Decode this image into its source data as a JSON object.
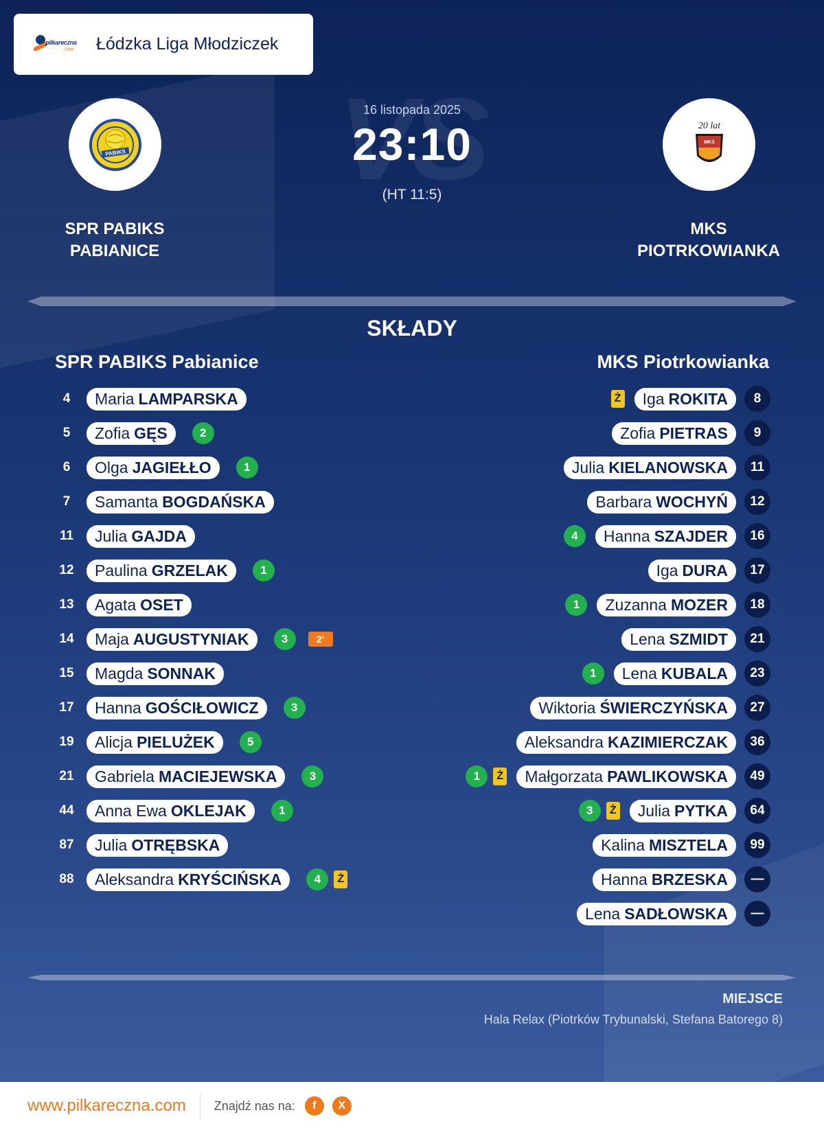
{
  "league": {
    "title": "Łódzka Liga Młodziczek",
    "logo_brand": "pilkareczna",
    "logo_suffix": ".com"
  },
  "match": {
    "date": "16 listopada 2025",
    "score": "23:10",
    "halftime": "(HT 11:5)",
    "vs_text": "VS",
    "home": {
      "name_line1": "SPR PABIKS",
      "name_line2": "PABIANICE",
      "full_name": "SPR PABIKS Pabianice",
      "logo_text": "PABIKS"
    },
    "away": {
      "name_line1": "MKS",
      "name_line2": "PIOTRKOWIANKA",
      "full_name": "MKS Piotrkowianka",
      "logo_text": "20 lat",
      "logo_sub": "MKS"
    }
  },
  "section_title": "SKŁADY",
  "home_players": [
    {
      "number": "4",
      "first": "Maria",
      "last": "LAMPARSKA",
      "goals": "",
      "yellow": "",
      "suspension": ""
    },
    {
      "number": "5",
      "first": "Zofia",
      "last": "GĘS",
      "goals": "2",
      "yellow": "",
      "suspension": ""
    },
    {
      "number": "6",
      "first": "Olga",
      "last": "JAGIEŁŁO",
      "goals": "1",
      "yellow": "",
      "suspension": ""
    },
    {
      "number": "7",
      "first": "Samanta",
      "last": "BOGDAŃSKA",
      "goals": "",
      "yellow": "",
      "suspension": ""
    },
    {
      "number": "11",
      "first": "Julia",
      "last": "GAJDA",
      "goals": "",
      "yellow": "",
      "suspension": ""
    },
    {
      "number": "12",
      "first": "Paulina",
      "last": "GRZELAK",
      "goals": "1",
      "yellow": "",
      "suspension": ""
    },
    {
      "number": "13",
      "first": "Agata",
      "last": "OSET",
      "goals": "",
      "yellow": "",
      "suspension": ""
    },
    {
      "number": "14",
      "first": "Maja",
      "last": "AUGUSTYNIAK",
      "goals": "3",
      "yellow": "",
      "suspension": "2'"
    },
    {
      "number": "15",
      "first": "Magda",
      "last": "SONNAK",
      "goals": "",
      "yellow": "",
      "suspension": ""
    },
    {
      "number": "17",
      "first": "Hanna",
      "last": "GOŚCIŁOWICZ",
      "goals": "3",
      "yellow": "",
      "suspension": ""
    },
    {
      "number": "19",
      "first": "Alicja",
      "last": "PIELUŻEK",
      "goals": "5",
      "yellow": "",
      "suspension": ""
    },
    {
      "number": "21",
      "first": "Gabriela",
      "last": "MACIEJEWSKA",
      "goals": "3",
      "yellow": "",
      "suspension": ""
    },
    {
      "number": "44",
      "first": "Anna Ewa",
      "last": "OKLEJAK",
      "goals": "1",
      "yellow": "",
      "suspension": ""
    },
    {
      "number": "87",
      "first": "Julia",
      "last": "OTRĘBSKA",
      "goals": "",
      "yellow": "",
      "suspension": ""
    },
    {
      "number": "88",
      "first": "Aleksandra",
      "last": "KRYŚCIŃSKA",
      "goals": "4",
      "yellow": "Ż",
      "suspension": ""
    }
  ],
  "away_players": [
    {
      "number": "8",
      "first": "Iga",
      "last": "ROKITA",
      "goals": "",
      "yellow": "Ż"
    },
    {
      "number": "9",
      "first": "Zofia",
      "last": "PIETRAS",
      "goals": "",
      "yellow": ""
    },
    {
      "number": "11",
      "first": "Julia",
      "last": "KIELANOWSKA",
      "goals": "",
      "yellow": ""
    },
    {
      "number": "12",
      "first": "Barbara",
      "last": "WOCHYŃ",
      "goals": "",
      "yellow": ""
    },
    {
      "number": "16",
      "first": "Hanna",
      "last": "SZAJDER",
      "goals": "4",
      "yellow": ""
    },
    {
      "number": "17",
      "first": "Iga",
      "last": "DURA",
      "goals": "",
      "yellow": ""
    },
    {
      "number": "18",
      "first": "Zuzanna",
      "last": "MOZER",
      "goals": "1",
      "yellow": ""
    },
    {
      "number": "21",
      "first": "Lena",
      "last": "SZMIDT",
      "goals": "",
      "yellow": ""
    },
    {
      "number": "23",
      "first": "Lena",
      "last": "KUBALA",
      "goals": "1",
      "yellow": ""
    },
    {
      "number": "27",
      "first": "Wiktoria",
      "last": "ŚWIERCZYŃSKA",
      "goals": "",
      "yellow": ""
    },
    {
      "number": "36",
      "first": "Aleksandra",
      "last": "KAZIMIERCZAK",
      "goals": "",
      "yellow": ""
    },
    {
      "number": "49",
      "first": "Małgorzata",
      "last": "PAWLIKOWSKA",
      "goals": "1",
      "yellow": "Ż"
    },
    {
      "number": "64",
      "first": "Julia",
      "last": "PYTKA",
      "goals": "3",
      "yellow": "Ż"
    },
    {
      "number": "99",
      "first": "Kalina",
      "last": "MISZTELA",
      "goals": "",
      "yellow": ""
    },
    {
      "number": "—",
      "first": "Hanna",
      "last": "BRZESKA",
      "goals": "",
      "yellow": ""
    },
    {
      "number": "—",
      "first": "Lena",
      "last": "SADŁOWSKA",
      "goals": "",
      "yellow": ""
    }
  ],
  "venue": {
    "label": "MIEJSCE",
    "text": "Hala Relax (Piotrków Trybunalski, Stefana Batorego 8)"
  },
  "footer": {
    "url": "www.pilkareczna.com",
    "find_us": "Znajdź nas na:",
    "facebook": "f",
    "x": "X"
  },
  "icons": {
    "facebook": "facebook-icon",
    "x": "x-icon"
  },
  "colors": {
    "navy": "#0d2358",
    "goal_green": "#22b14c",
    "yellow_card": "#f5c518",
    "suspension_orange": "#f27b1f",
    "brand_orange": "#f07a1a"
  }
}
